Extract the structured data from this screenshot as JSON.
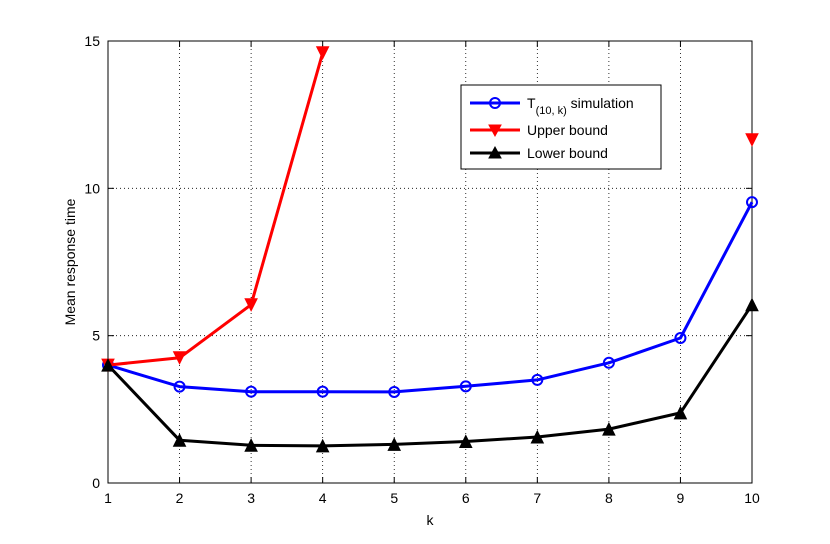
{
  "chart_data": {
    "type": "line",
    "xlabel": "k",
    "ylabel": "Mean response time",
    "xlim": [
      1,
      10
    ],
    "ylim": [
      0,
      15
    ],
    "xticks": [
      "1",
      "2",
      "3",
      "4",
      "5",
      "6",
      "7",
      "8",
      "9",
      "10"
    ],
    "yticks": [
      "0",
      "5",
      "10",
      "15"
    ],
    "grid": true,
    "legend_position": "top-right",
    "legend": {
      "sim_prefix": "T",
      "sim_sub": "(10, k)",
      "sim_suffix": " simulation",
      "upper": "Upper bound",
      "lower": "Lower bound"
    },
    "series": [
      {
        "key": "simulation",
        "color": "#0000ff",
        "marker": "circle",
        "x": [
          1,
          2,
          3,
          4,
          5,
          6,
          7,
          8,
          9,
          10
        ],
        "values": [
          4.0,
          3.27,
          3.1,
          3.1,
          3.09,
          3.28,
          3.5,
          4.08,
          4.92,
          9.53
        ]
      },
      {
        "key": "upper",
        "color": "#ff0000",
        "marker": "triangle-down",
        "x": [
          1,
          2,
          3,
          4,
          10
        ],
        "values": [
          4.0,
          4.25,
          6.05,
          14.6,
          11.65
        ],
        "connected_segments": [
          [
            0,
            3
          ]
        ]
      },
      {
        "key": "lower",
        "color": "#000000",
        "marker": "triangle-up",
        "x": [
          1,
          2,
          3,
          4,
          5,
          6,
          7,
          8,
          9,
          10
        ],
        "values": [
          4.0,
          1.45,
          1.28,
          1.26,
          1.31,
          1.41,
          1.56,
          1.83,
          2.38,
          6.05
        ]
      }
    ]
  }
}
